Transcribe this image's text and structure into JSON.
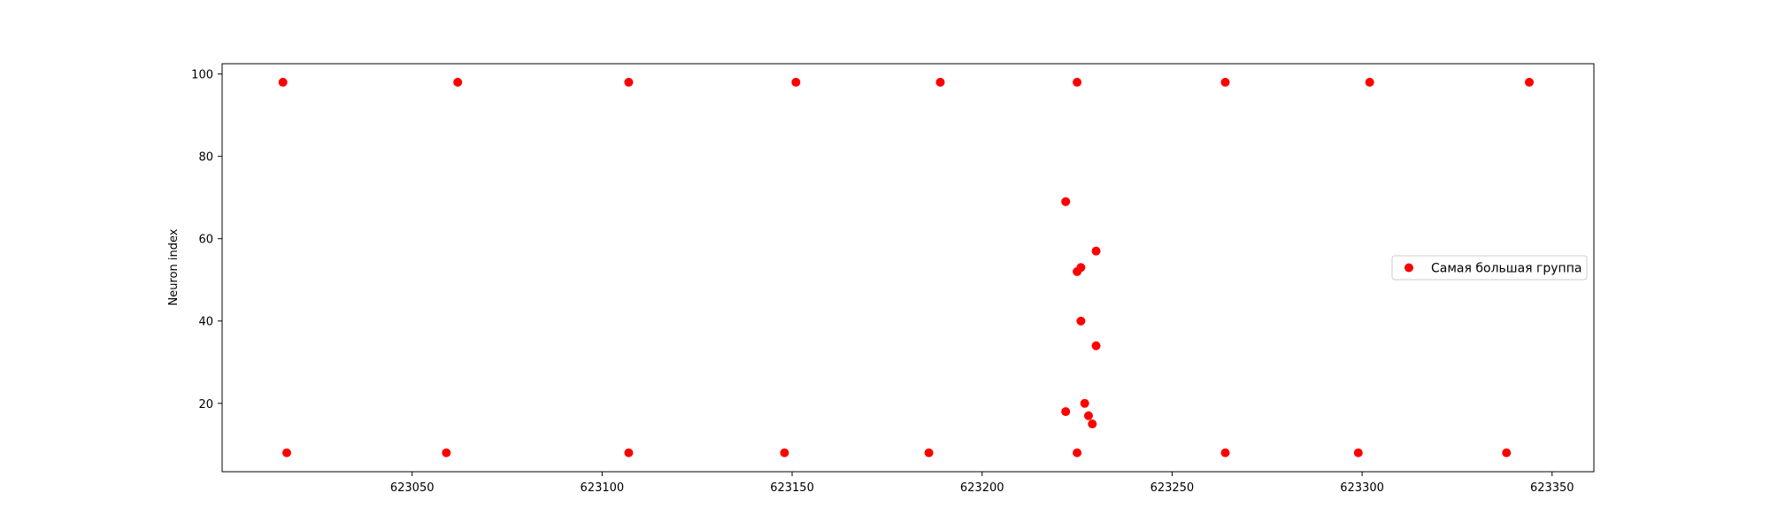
{
  "chart_data": {
    "type": "scatter",
    "title": "",
    "xlabel": "",
    "ylabel": "Neuron index",
    "xlim": [
      623000,
      623361
    ],
    "ylim": [
      3.4,
      102.5
    ],
    "xticks": [
      623050,
      623100,
      623150,
      623200,
      623250,
      623300,
      623350
    ],
    "xtick_labels": [
      "623050",
      "623100",
      "623150",
      "623200",
      "623250",
      "623300",
      "623350"
    ],
    "yticks": [
      20,
      40,
      60,
      80,
      100
    ],
    "ytick_labels": [
      "20",
      "40",
      "60",
      "80",
      "100"
    ],
    "grid": false,
    "legend_position": "center-right",
    "series": [
      {
        "name": "Самая большая группа",
        "color": "#ff0000",
        "marker": "circle",
        "points": [
          {
            "x": 623016,
            "y": 98
          },
          {
            "x": 623062,
            "y": 98
          },
          {
            "x": 623107,
            "y": 98
          },
          {
            "x": 623151,
            "y": 98
          },
          {
            "x": 623189,
            "y": 98
          },
          {
            "x": 623225,
            "y": 98
          },
          {
            "x": 623264,
            "y": 98
          },
          {
            "x": 623302,
            "y": 98
          },
          {
            "x": 623344,
            "y": 98
          },
          {
            "x": 623017,
            "y": 8
          },
          {
            "x": 623059,
            "y": 8
          },
          {
            "x": 623107,
            "y": 8
          },
          {
            "x": 623148,
            "y": 8
          },
          {
            "x": 623186,
            "y": 8
          },
          {
            "x": 623225,
            "y": 8
          },
          {
            "x": 623264,
            "y": 8
          },
          {
            "x": 623299,
            "y": 8
          },
          {
            "x": 623338,
            "y": 8
          },
          {
            "x": 623222,
            "y": 69
          },
          {
            "x": 623230,
            "y": 57
          },
          {
            "x": 623226,
            "y": 53
          },
          {
            "x": 623225,
            "y": 52
          },
          {
            "x": 623226,
            "y": 40
          },
          {
            "x": 623230,
            "y": 34
          },
          {
            "x": 623227,
            "y": 20
          },
          {
            "x": 623222,
            "y": 18
          },
          {
            "x": 623228,
            "y": 17
          },
          {
            "x": 623229,
            "y": 15
          }
        ]
      }
    ]
  }
}
